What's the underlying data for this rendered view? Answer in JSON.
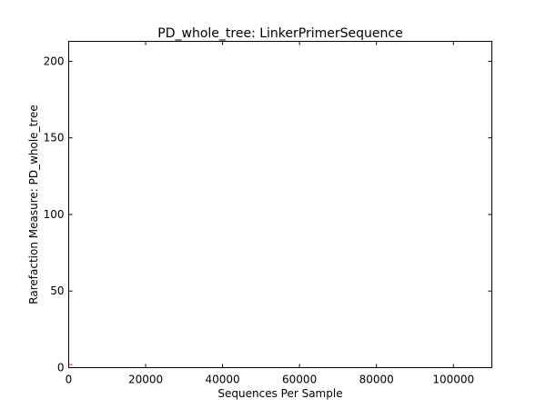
{
  "chart_data": {
    "type": "line",
    "title": "PD_whole_tree: LinkerPrimerSequence",
    "xlabel": "Sequences Per Sample",
    "ylabel": "Rarefaction Measure: PD_whole_tree",
    "xlim": [
      0,
      110000
    ],
    "ylim": [
      0,
      213
    ],
    "x_ticks": [
      0,
      20000,
      40000,
      60000,
      80000,
      100000
    ],
    "x_tick_labels": [
      "0",
      "20000",
      "40000",
      "60000",
      "80000",
      "100000"
    ],
    "y_ticks": [
      0,
      50,
      100,
      150,
      200
    ],
    "y_tick_labels": [
      "0",
      "50",
      "100",
      "150",
      "200"
    ],
    "grid": false,
    "legend": "none",
    "series": [
      {
        "color": "#cc3333",
        "x": [
          0,
          1000
        ],
        "y": [
          2,
          2
        ]
      }
    ]
  }
}
